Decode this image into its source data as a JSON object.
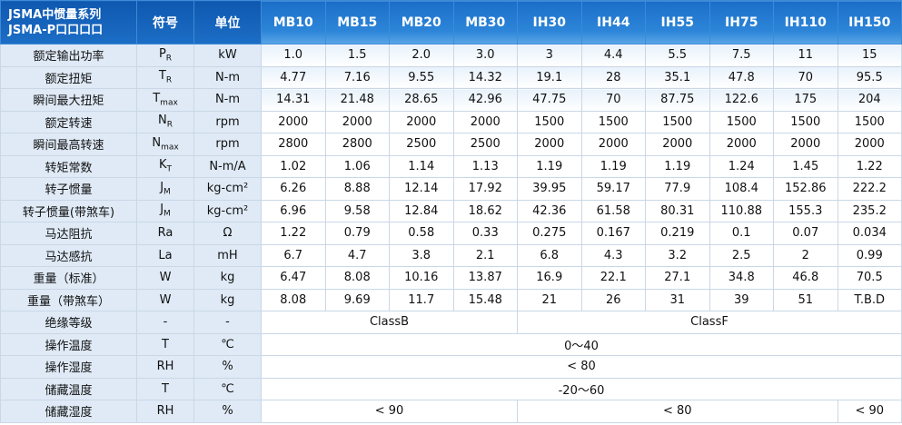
{
  "header": {
    "series_title": [
      "JSMA中惯量系列",
      "JSMA-P口口口口"
    ],
    "symbol": "符号",
    "unit": "单位",
    "models": [
      "MB10",
      "MB15",
      "MB20",
      "MB30",
      "IH30",
      "IH44",
      "IH55",
      "IH75",
      "IH110",
      "IH150"
    ]
  },
  "rows": [
    {
      "name": "额定输出功率",
      "symbol": "P",
      "symbol_sub": "R",
      "unit": "kW",
      "values": [
        "1.0",
        "1.5",
        "2.0",
        "3.0",
        "3",
        "4.4",
        "5.5",
        "7.5",
        "11",
        "15"
      ]
    },
    {
      "name": "额定扭矩",
      "symbol": "T",
      "symbol_sub": "R",
      "unit": "N-m",
      "values": [
        "4.77",
        "7.16",
        "9.55",
        "14.32",
        "19.1",
        "28",
        "35.1",
        "47.8",
        "70",
        "95.5"
      ]
    },
    {
      "name": "瞬间最大扭矩",
      "symbol": "T",
      "symbol_sub": "max",
      "unit": "N-m",
      "values": [
        "14.31",
        "21.48",
        "28.65",
        "42.96",
        "47.75",
        "70",
        "87.75",
        "122.6",
        "175",
        "204"
      ]
    },
    {
      "name": "额定转速",
      "symbol": "N",
      "symbol_sub": "R",
      "unit": "rpm",
      "values": [
        "2000",
        "2000",
        "2000",
        "2000",
        "1500",
        "1500",
        "1500",
        "1500",
        "1500",
        "1500"
      ]
    },
    {
      "name": "瞬间最高转速",
      "symbol": "N",
      "symbol_sub": "max",
      "unit": "rpm",
      "values": [
        "2800",
        "2800",
        "2500",
        "2500",
        "2000",
        "2000",
        "2000",
        "2000",
        "2000",
        "2000"
      ]
    },
    {
      "name": "转矩常数",
      "symbol": "K",
      "symbol_sub": "T",
      "unit": "N-m/A",
      "values": [
        "1.02",
        "1.06",
        "1.14",
        "1.13",
        "1.19",
        "1.19",
        "1.19",
        "1.24",
        "1.45",
        "1.22"
      ]
    },
    {
      "name": "转子惯量",
      "symbol": "J",
      "symbol_sub": "M",
      "unit": "kg-cm²",
      "values": [
        "6.26",
        "8.88",
        "12.14",
        "17.92",
        "39.95",
        "59.17",
        "77.9",
        "108.4",
        "152.86",
        "222.2"
      ]
    },
    {
      "name": "转子惯量(带煞车)",
      "symbol": "J",
      "symbol_sub": "M",
      "unit": "kg-cm²",
      "values": [
        "6.96",
        "9.58",
        "12.84",
        "18.62",
        "42.36",
        "61.58",
        "80.31",
        "110.88",
        "155.3",
        "235.2"
      ]
    },
    {
      "name": "马达阻抗",
      "symbol": "Ra",
      "unit": "Ω",
      "values": [
        "1.22",
        "0.79",
        "0.58",
        "0.33",
        "0.275",
        "0.167",
        "0.219",
        "0.1",
        "0.07",
        "0.034"
      ]
    },
    {
      "name": "马达感抗",
      "symbol": "La",
      "unit": "mH",
      "values": [
        "6.7",
        "4.7",
        "3.8",
        "2.1",
        "6.8",
        "4.3",
        "3.2",
        "2.5",
        "2",
        "0.99"
      ]
    },
    {
      "name": "重量（标准）",
      "symbol": "W",
      "unit": "kg",
      "values": [
        "6.47",
        "8.08",
        "10.16",
        "13.87",
        "16.9",
        "22.1",
        "27.1",
        "34.8",
        "46.8",
        "70.5"
      ]
    },
    {
      "name": "重量（带煞车）",
      "symbol": "W",
      "unit": "kg",
      "values": [
        "8.08",
        "9.69",
        "11.7",
        "15.48",
        "21",
        "26",
        "31",
        "39",
        "51",
        "T.B.D"
      ]
    },
    {
      "name": "绝缘等级",
      "symbol": "-",
      "unit": "-",
      "values": [
        "ClassB",
        null,
        null,
        null,
        "ClassF",
        null,
        null,
        null,
        null,
        null
      ]
    },
    {
      "name": "操作温度",
      "symbol": "T",
      "unit": "℃",
      "values": [
        "0～40",
        null,
        null,
        null,
        null,
        null,
        null,
        null,
        null,
        null
      ]
    },
    {
      "name": "操作湿度",
      "symbol": "RH",
      "unit": "%",
      "values": [
        "< 80",
        null,
        null,
        null,
        null,
        null,
        null,
        null,
        null,
        null
      ]
    },
    {
      "name": "储藏温度",
      "symbol": "T",
      "unit": "℃",
      "values": [
        "-20～60",
        null,
        null,
        null,
        null,
        null,
        null,
        null,
        null,
        null
      ]
    },
    {
      "name": "储藏湿度",
      "symbol": "RH",
      "unit": "%",
      "values": [
        "< 90",
        null,
        null,
        null,
        "< 80",
        null,
        null,
        null,
        null,
        "< 90"
      ]
    }
  ]
}
